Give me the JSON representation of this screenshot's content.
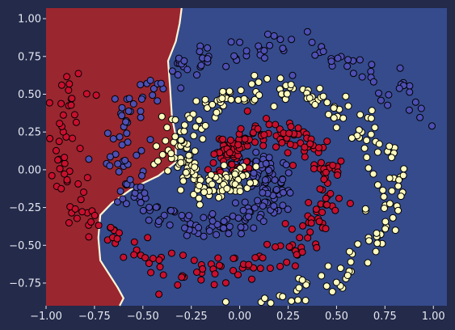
{
  "chart_data": {
    "type": "scatter",
    "title": "",
    "xlabel": "",
    "ylabel": "",
    "xlim": [
      -1.0,
      1.07
    ],
    "ylim": [
      -0.9,
      1.07
    ],
    "x_ticks": [
      -1.0,
      -0.75,
      -0.5,
      -0.25,
      0.0,
      0.25,
      0.5,
      0.75,
      1.0
    ],
    "x_tick_labels": [
      "−1.00",
      "−0.75",
      "−0.50",
      "−0.25",
      "0.00",
      "0.25",
      "0.50",
      "0.75",
      "1.00"
    ],
    "y_ticks": [
      1.0,
      0.75,
      0.5,
      0.25,
      0.0,
      -0.25,
      -0.5,
      -0.75
    ],
    "y_tick_labels": [
      "1.00",
      "0.75",
      "0.50",
      "0.25",
      "0.00",
      "−0.25",
      "−0.50",
      "−0.75"
    ],
    "grid": false,
    "legend": "none",
    "colors": {
      "background": "#232a4a",
      "region_class_0": "#354b8c",
      "region_class_1": "#9a2630",
      "region_class_2": "#354b8c",
      "boundary": "#fff6d5",
      "class_0": "#4d4fb3",
      "class_1": "#c8102e",
      "class_2": "#fffbbd",
      "edge": "#000000"
    },
    "decision_boundary": [
      [
        -0.62,
        -0.9
      ],
      [
        -0.6,
        -0.85
      ],
      [
        -0.63,
        -0.78
      ],
      [
        -0.68,
        -0.68
      ],
      [
        -0.72,
        -0.6
      ],
      [
        -0.73,
        -0.45
      ],
      [
        -0.72,
        -0.3
      ],
      [
        -0.66,
        -0.22
      ],
      [
        -0.55,
        -0.12
      ],
      [
        -0.42,
        -0.04
      ],
      [
        -0.33,
        0.05
      ],
      [
        -0.33,
        0.22
      ],
      [
        -0.35,
        0.35
      ],
      [
        -0.36,
        0.55
      ],
      [
        -0.37,
        0.72
      ],
      [
        -0.33,
        0.85
      ],
      [
        -0.31,
        0.97
      ],
      [
        -0.3,
        1.07
      ]
    ],
    "spiral_arms": [
      {
        "class": 0,
        "points": 300,
        "start_radius": 0.02,
        "end_radius": 1.02,
        "turns": 1.05,
        "phase_deg": 40,
        "noise": 0.05
      },
      {
        "class": 1,
        "points": 300,
        "start_radius": 0.02,
        "end_radius": 1.02,
        "turns": 1.05,
        "phase_deg": 160,
        "noise": 0.05
      },
      {
        "class": 2,
        "points": 300,
        "start_radius": 0.02,
        "end_radius": 1.02,
        "turns": 1.05,
        "phase_deg": 280,
        "noise": 0.05
      }
    ]
  }
}
